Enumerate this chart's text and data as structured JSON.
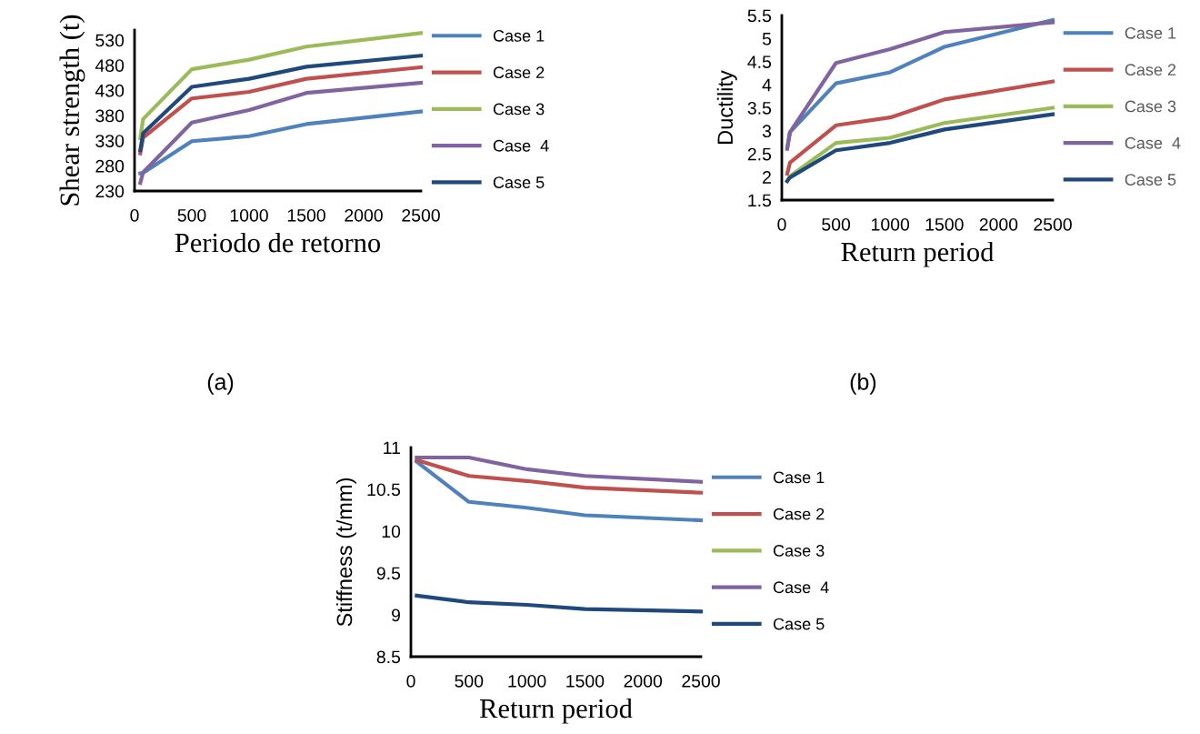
{
  "chart_data": [
    {
      "type": "line",
      "xlabel": "Periodo de retorno",
      "ylabel": "Shear strength (t)",
      "x": [
        50,
        75,
        500,
        1000,
        1500,
        2500
      ],
      "xlim": [
        0,
        2500
      ],
      "xticks": [
        0,
        500,
        1000,
        1500,
        2000,
        2500
      ],
      "ylim": [
        230,
        550
      ],
      "yticks": [
        230,
        280,
        330,
        380,
        430,
        480,
        530
      ],
      "legend": "right",
      "grid": false,
      "annotations": [
        "(a)"
      ],
      "series": [
        {
          "name": "Case 1",
          "color": "#4f81bd",
          "values": [
            265,
            266,
            329,
            339,
            363,
            388
          ]
        },
        {
          "name": "Case 2",
          "color": "#c0504d",
          "values": [
            305,
            336,
            414,
            427,
            453,
            476
          ]
        },
        {
          "name": "Case 3",
          "color": "#9bbb59",
          "values": [
            335,
            373,
            472,
            491,
            517,
            544
          ]
        },
        {
          "name": "Case  4",
          "color": "#8064a2",
          "values": [
            246,
            267,
            366,
            391,
            425,
            445
          ]
        },
        {
          "name": "Case 5",
          "color": "#1f497d",
          "values": [
            311,
            345,
            437,
            453,
            477,
            499
          ]
        }
      ]
    },
    {
      "type": "line",
      "xlabel": "Return period",
      "ylabel": "Ductility",
      "x": [
        50,
        75,
        500,
        1000,
        1500,
        2500
      ],
      "xlim": [
        0,
        2500
      ],
      "xticks": [
        0,
        500,
        1000,
        1500,
        2000,
        2500
      ],
      "ylim": [
        1.5,
        5.5
      ],
      "yticks": [
        1.5,
        2,
        2.5,
        3,
        3.5,
        4,
        4.5,
        5,
        5.5
      ],
      "legend": "right",
      "grid": false,
      "annotations": [
        "(b)"
      ],
      "series": [
        {
          "name": "Case 1",
          "color": "#4f81bd",
          "values": [
            2.63,
            2.97,
            4.03,
            4.27,
            4.82,
            5.4
          ]
        },
        {
          "name": "Case 2",
          "color": "#c0504d",
          "values": [
            2.07,
            2.31,
            3.12,
            3.29,
            3.68,
            4.07
          ]
        },
        {
          "name": "Case 3",
          "color": "#9bbb59",
          "values": [
            1.92,
            2.02,
            2.74,
            2.85,
            3.17,
            3.5
          ]
        },
        {
          "name": "Case  4",
          "color": "#8064a2",
          "values": [
            2.61,
            2.97,
            4.47,
            4.77,
            5.14,
            5.35
          ]
        },
        {
          "name": "Case 5",
          "color": "#1f497d",
          "values": [
            1.91,
            1.99,
            2.58,
            2.74,
            3.03,
            3.36
          ]
        }
      ]
    },
    {
      "type": "line",
      "xlabel": "Return period",
      "ylabel": "Stiffness (t/mm)",
      "x": [
        50,
        500,
        1000,
        1500,
        2500
      ],
      "xlim": [
        0,
        2500
      ],
      "xticks": [
        0,
        500,
        1000,
        1500,
        2000,
        2500
      ],
      "ylim": [
        8.5,
        11
      ],
      "yticks": [
        8.5,
        9,
        9.5,
        10,
        10.5,
        11
      ],
      "legend": "right",
      "grid": false,
      "series": [
        {
          "name": "Case 1",
          "color": "#4f81bd",
          "values": [
            10.83,
            10.35,
            10.28,
            10.19,
            10.13
          ]
        },
        {
          "name": "Case 2",
          "color": "#c0504d",
          "values": [
            10.85,
            10.66,
            10.6,
            10.52,
            10.46
          ]
        },
        {
          "name": "Case 3",
          "color": "#9bbb59",
          "values": [
            null,
            null,
            null,
            null,
            null
          ]
        },
        {
          "name": "Case  4",
          "color": "#8064a2",
          "values": [
            10.88,
            10.88,
            10.74,
            10.66,
            10.59
          ]
        },
        {
          "name": "Case 5",
          "color": "#1f497d",
          "values": [
            9.23,
            9.15,
            9.12,
            9.07,
            9.04
          ]
        }
      ]
    }
  ]
}
